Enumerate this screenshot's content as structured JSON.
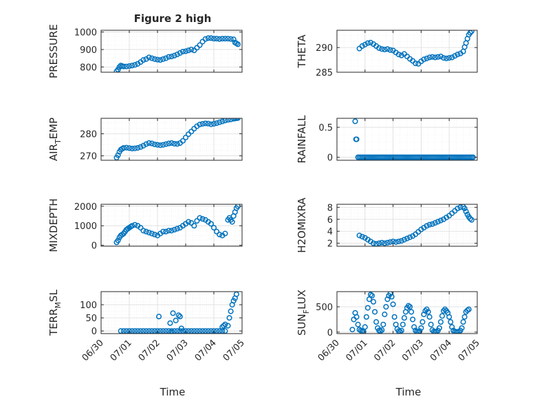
{
  "figure": {
    "title": "Figure 2 high",
    "xlabel": "Time"
  },
  "colors": {
    "marker": "#0072BD",
    "axis": "#262626",
    "grid": "#dcdcdc",
    "minor_grid": "#ececec",
    "background": "#ffffff"
  },
  "chart_data": [
    {
      "type": "scatter",
      "ylabel": "PRESSURE",
      "ylabel_sub": null,
      "x_range": [
        "06/30 12:00",
        "07/04 12:00"
      ],
      "ylim": [
        770,
        1010
      ],
      "yticks": [
        800,
        900,
        1000
      ],
      "xticks": [],
      "series": [
        {
          "x": [
            0.05,
            0.1,
            0.15,
            0.2,
            0.25,
            0.3,
            0.4,
            0.5,
            0.6,
            0.7,
            0.8,
            0.9,
            1.0,
            1.1,
            1.2,
            1.3,
            1.4,
            1.5,
            1.6,
            1.7,
            1.8,
            1.9,
            2.0,
            2.1,
            2.2,
            2.3,
            2.4,
            2.5,
            2.6,
            2.7,
            2.8,
            2.9,
            3.0,
            3.1,
            3.2,
            3.3,
            3.4,
            3.5,
            3.6,
            3.7,
            3.8,
            3.9,
            4.0,
            4.1,
            4.2,
            4.25,
            4.3,
            4.35
          ],
          "y": [
            775,
            785,
            800,
            808,
            805,
            803,
            803,
            805,
            808,
            812,
            818,
            828,
            840,
            845,
            855,
            850,
            845,
            842,
            840,
            845,
            850,
            858,
            860,
            865,
            872,
            880,
            888,
            890,
            895,
            900,
            895,
            910,
            925,
            945,
            960,
            965,
            965,
            962,
            962,
            960,
            962,
            962,
            962,
            960,
            958,
            940,
            935,
            930
          ]
        }
      ]
    },
    {
      "type": "scatter",
      "ylabel": "THETA",
      "ylabel_sub": null,
      "x_range": [
        "06/30 12:00",
        "07/04 12:00"
      ],
      "ylim": [
        285,
        293.5
      ],
      "yticks": [
        285,
        290
      ],
      "xticks": [],
      "series": [
        {
          "x": [
            0.3,
            0.4,
            0.5,
            0.6,
            0.7,
            0.8,
            0.9,
            1.0,
            1.1,
            1.2,
            1.3,
            1.4,
            1.5,
            1.6,
            1.7,
            1.8,
            1.9,
            2.0,
            2.1,
            2.2,
            2.3,
            2.4,
            2.5,
            2.6,
            2.7,
            2.8,
            2.9,
            3.0,
            3.1,
            3.2,
            3.3,
            3.4,
            3.5,
            3.6,
            3.7,
            3.8,
            3.9,
            4.0,
            4.05,
            4.1,
            4.15,
            4.2,
            4.25,
            4.3
          ],
          "y": [
            289.8,
            290.3,
            290.6,
            290.9,
            291.0,
            290.7,
            290.3,
            289.9,
            289.7,
            289.6,
            289.7,
            289.5,
            289.4,
            289.0,
            288.6,
            288.4,
            288.7,
            288.2,
            287.7,
            287.3,
            286.8,
            286.7,
            287.2,
            287.6,
            287.8,
            288.0,
            288.1,
            288.0,
            288.1,
            288.2,
            287.9,
            287.8,
            287.9,
            288.0,
            288.3,
            288.6,
            288.8,
            289.2,
            290.1,
            290.9,
            291.8,
            292.6,
            293.0,
            293.3
          ]
        }
      ]
    },
    {
      "type": "scatter",
      "ylabel": "AIR",
      "ylabel_sub": "T",
      "ylabel_tail": "EMP",
      "x_range": [
        "06/30 12:00",
        "07/04 12:00"
      ],
      "ylim": [
        268,
        287
      ],
      "yticks": [
        270,
        280
      ],
      "xticks": [],
      "series": [
        {
          "x": [
            0.05,
            0.1,
            0.15,
            0.2,
            0.25,
            0.3,
            0.4,
            0.5,
            0.6,
            0.7,
            0.8,
            0.9,
            1.0,
            1.1,
            1.2,
            1.3,
            1.4,
            1.5,
            1.6,
            1.7,
            1.8,
            1.9,
            2.0,
            2.1,
            2.2,
            2.3,
            2.4,
            2.5,
            2.6,
            2.7,
            2.8,
            2.9,
            3.0,
            3.1,
            3.2,
            3.3,
            3.4,
            3.5,
            3.6,
            3.7,
            3.8,
            3.9,
            4.0,
            4.1,
            4.2,
            4.25,
            4.3,
            4.35
          ],
          "y": [
            269.2,
            270.3,
            271.8,
            272.8,
            273.2,
            273.6,
            273.7,
            273.5,
            273.3,
            273.4,
            273.6,
            274.0,
            274.6,
            275.3,
            275.8,
            275.6,
            275.2,
            275.0,
            274.8,
            275.0,
            275.3,
            275.6,
            275.8,
            275.5,
            275.4,
            275.8,
            276.8,
            278.3,
            279.8,
            281.0,
            282.3,
            283.4,
            284.2,
            284.5,
            284.7,
            284.6,
            284.3,
            284.5,
            284.8,
            285.2,
            285.6,
            286.0,
            286.3,
            286.5,
            286.8,
            286.9,
            287.0,
            287.1
          ]
        }
      ]
    },
    {
      "type": "scatter",
      "ylabel": "RAINFALL",
      "ylabel_sub": null,
      "x_range": [
        "06/30 12:00",
        "07/04 12:00"
      ],
      "ylim": [
        -0.05,
        0.65
      ],
      "yticks": [
        0,
        0.5
      ],
      "xticks": [],
      "series": [
        {
          "x": [
            0.15,
            0.18,
            0.2,
            0.25,
            0.3,
            0.35,
            0.4,
            0.45,
            0.5,
            0.55,
            0.6,
            0.65,
            0.7,
            0.75,
            0.8,
            0.85,
            0.9,
            0.95,
            1.0,
            1.05,
            1.1,
            1.15,
            1.2,
            1.25,
            1.3,
            1.35,
            1.4,
            1.45,
            1.5,
            1.55,
            1.6,
            1.65,
            1.7,
            1.75,
            1.8,
            1.85,
            1.9,
            1.95,
            2.0,
            2.05,
            2.1,
            2.15,
            2.2,
            2.25,
            2.3,
            2.35,
            2.4,
            2.45,
            2.5,
            2.55,
            2.6,
            2.65,
            2.7,
            2.75,
            2.8,
            2.85,
            2.9,
            2.95,
            3.0,
            3.05,
            3.1,
            3.15,
            3.2,
            3.25,
            3.3,
            3.35,
            3.4,
            3.45,
            3.5,
            3.55,
            3.6,
            3.65,
            3.7,
            3.75,
            3.8,
            3.85,
            3.9,
            3.95,
            4.0,
            4.05,
            4.1,
            4.15,
            4.2,
            4.25,
            4.3,
            4.35
          ],
          "y": [
            0.6,
            0.3,
            0.3,
            0,
            0,
            0,
            0,
            0,
            0,
            0,
            0,
            0,
            0,
            0,
            0,
            0,
            0,
            0,
            0,
            0,
            0,
            0,
            0,
            0,
            0,
            0,
            0,
            0,
            0,
            0,
            0,
            0,
            0,
            0,
            0,
            0,
            0,
            0,
            0,
            0,
            0,
            0,
            0,
            0,
            0,
            0,
            0,
            0,
            0,
            0,
            0,
            0,
            0,
            0,
            0,
            0,
            0,
            0,
            0,
            0,
            0,
            0,
            0,
            0,
            0,
            0,
            0,
            0,
            0,
            0,
            0,
            0,
            0,
            0,
            0,
            0,
            0,
            0,
            0,
            0,
            0,
            0,
            0,
            0,
            0,
            0
          ]
        }
      ]
    },
    {
      "type": "scatter",
      "ylabel": "MIXDEPTH",
      "ylabel_sub": null,
      "x_range": [
        "06/30 12:00",
        "07/04 12:00"
      ],
      "ylim": [
        -50,
        2100
      ],
      "yticks": [
        0,
        1000,
        2000
      ],
      "xticks": [],
      "series": [
        {
          "x": [
            0.05,
            0.1,
            0.15,
            0.2,
            0.25,
            0.3,
            0.35,
            0.4,
            0.45,
            0.5,
            0.55,
            0.6,
            0.7,
            0.8,
            0.9,
            1.0,
            1.1,
            1.2,
            1.3,
            1.4,
            1.5,
            1.6,
            1.7,
            1.8,
            1.9,
            2.0,
            2.1,
            2.2,
            2.3,
            2.4,
            2.5,
            2.6,
            2.7,
            2.8,
            2.9,
            3.0,
            3.1,
            3.2,
            3.3,
            3.4,
            3.5,
            3.6,
            3.7,
            3.8,
            3.9,
            4.0,
            4.05,
            4.1,
            4.15,
            4.2,
            4.25,
            4.3,
            4.35
          ],
          "y": [
            150,
            250,
            400,
            500,
            550,
            600,
            700,
            800,
            850,
            900,
            950,
            1000,
            1050,
            1000,
            900,
            750,
            700,
            650,
            600,
            550,
            500,
            600,
            700,
            700,
            750,
            750,
            800,
            850,
            900,
            1000,
            1100,
            1200,
            1150,
            1000,
            1250,
            1400,
            1350,
            1300,
            1200,
            1100,
            900,
            700,
            550,
            500,
            600,
            1300,
            1400,
            1300,
            1200,
            1500,
            1700,
            1900,
            2000
          ]
        }
      ]
    },
    {
      "type": "scatter",
      "ylabel": "H2OMIXRA",
      "ylabel_sub": null,
      "x_range": [
        "06/30 12:00",
        "07/04 12:00"
      ],
      "ylim": [
        1.5,
        8.5
      ],
      "yticks": [
        2,
        4,
        6,
        8
      ],
      "xticks": [],
      "series": [
        {
          "x": [
            0.3,
            0.4,
            0.5,
            0.6,
            0.7,
            0.8,
            0.9,
            1.0,
            1.1,
            1.2,
            1.3,
            1.4,
            1.5,
            1.6,
            1.7,
            1.8,
            1.9,
            2.0,
            2.1,
            2.2,
            2.3,
            2.4,
            2.5,
            2.6,
            2.7,
            2.8,
            2.9,
            3.0,
            3.1,
            3.2,
            3.3,
            3.4,
            3.5,
            3.6,
            3.7,
            3.8,
            3.9,
            4.0,
            4.05,
            4.1,
            4.15,
            4.2,
            4.25,
            4.3
          ],
          "y": [
            3.3,
            3.1,
            2.9,
            2.6,
            2.3,
            2.0,
            1.9,
            2.0,
            2.1,
            2.0,
            2.1,
            2.2,
            2.3,
            2.2,
            2.3,
            2.4,
            2.6,
            2.8,
            3.0,
            3.2,
            3.5,
            3.9,
            4.3,
            4.6,
            4.9,
            5.1,
            5.2,
            5.4,
            5.6,
            5.8,
            6.0,
            6.3,
            6.6,
            7.0,
            7.4,
            7.8,
            8.0,
            8.1,
            7.8,
            7.3,
            6.8,
            6.4,
            6.1,
            5.9
          ]
        }
      ]
    },
    {
      "type": "scatter",
      "ylabel": "TERR",
      "ylabel_sub": "M",
      "ylabel_tail": "SL",
      "x_range": [
        "06/30 12:00",
        "07/04 12:00"
      ],
      "ylim": [
        -10,
        150
      ],
      "yticks": [
        0,
        50,
        100
      ],
      "xticks": [
        "06/30",
        "07/01",
        "07/02",
        "07/03",
        "07/04",
        "07/05"
      ],
      "series": [
        {
          "x": [
            0.2,
            0.3,
            0.4,
            0.5,
            0.6,
            0.7,
            0.8,
            0.9,
            1.0,
            1.1,
            1.2,
            1.3,
            1.4,
            1.5,
            1.6,
            1.7,
            1.8,
            1.9,
            2.0,
            2.1,
            2.2,
            2.3,
            2.4,
            2.5,
            2.6,
            2.7,
            2.8,
            2.9,
            3.0,
            3.1,
            3.2,
            3.3,
            3.4,
            3.5,
            3.6,
            3.7,
            3.8,
            3.9,
            4.0,
            4.05,
            4.1,
            4.15,
            4.2,
            4.25,
            4.3,
            1.55,
            1.95,
            2.0,
            2.05,
            2.15,
            2.25,
            2.3,
            2.35,
            3.8,
            3.85,
            3.9
          ],
          "y": [
            0,
            0,
            0,
            0,
            0,
            0,
            0,
            0,
            0,
            0,
            0,
            0,
            0,
            0,
            0,
            0,
            0,
            0,
            0,
            0,
            0,
            0,
            0,
            0,
            0,
            0,
            0,
            0,
            0,
            0,
            0,
            0,
            0,
            0,
            0,
            0,
            0,
            0,
            20,
            50,
            75,
            100,
            115,
            125,
            140,
            55,
            30,
            -5,
            68,
            40,
            60,
            55,
            10,
            15,
            20,
            25
          ]
        }
      ]
    },
    {
      "type": "scatter",
      "ylabel": "SUN",
      "ylabel_sub": "F",
      "ylabel_tail": "LUX",
      "x_range": [
        "06/30 12:00",
        "07/04 12:00"
      ],
      "ylim": [
        -30,
        800
      ],
      "yticks": [
        0,
        500
      ],
      "xticks": [
        "06/30",
        "07/01",
        "07/02",
        "07/03",
        "07/04",
        "07/05"
      ],
      "series": [
        {
          "x": [
            0.05,
            0.1,
            0.15,
            0.2,
            0.25,
            0.3,
            0.35,
            0.4,
            0.45,
            0.5,
            0.55,
            0.6,
            0.65,
            0.7,
            0.75,
            0.8,
            0.85,
            0.9,
            0.95,
            1.0,
            1.05,
            1.1,
            1.15,
            1.2,
            1.25,
            1.3,
            1.35,
            1.4,
            1.45,
            1.5,
            1.55,
            1.6,
            1.65,
            1.7,
            1.75,
            1.8,
            1.85,
            1.9,
            1.95,
            2.0,
            2.05,
            2.1,
            2.15,
            2.2,
            2.25,
            2.3,
            2.35,
            2.4,
            2.45,
            2.5,
            2.55,
            2.6,
            2.65,
            2.7,
            2.75,
            2.8,
            2.85,
            2.9,
            2.95,
            3.0,
            3.05,
            3.1,
            3.15,
            3.2,
            3.25,
            3.3,
            3.35,
            3.4,
            3.45,
            3.5,
            3.55,
            3.6,
            3.65,
            3.7,
            3.75,
            3.8,
            3.85,
            3.9,
            3.95,
            4.0,
            4.05,
            4.1,
            4.15,
            4.2
          ],
          "y": [
            50,
            250,
            380,
            300,
            150,
            50,
            30,
            20,
            10,
            100,
            300,
            480,
            650,
            740,
            720,
            600,
            400,
            200,
            80,
            30,
            20,
            40,
            150,
            350,
            500,
            650,
            720,
            760,
            700,
            550,
            300,
            150,
            60,
            20,
            10,
            30,
            150,
            280,
            400,
            480,
            520,
            500,
            400,
            250,
            100,
            30,
            10,
            5,
            20,
            80,
            200,
            350,
            420,
            450,
            400,
            300,
            150,
            40,
            10,
            5,
            10,
            30,
            80,
            200,
            320,
            420,
            450,
            420,
            380,
            300,
            200,
            100,
            30,
            10,
            5,
            5,
            10,
            30,
            80,
            200,
            300,
            400,
            430,
            450
          ]
        }
      ]
    }
  ]
}
